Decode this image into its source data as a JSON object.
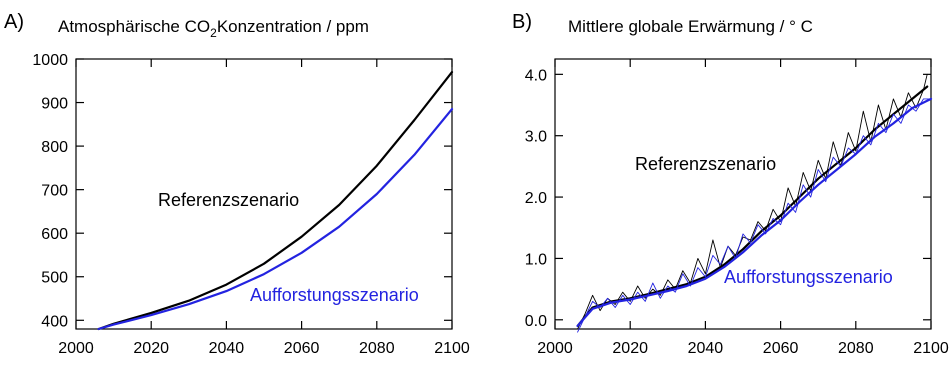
{
  "chart_data": [
    {
      "panel_label": "A)",
      "type": "line",
      "title_parts": {
        "pre": "Atmosphärische CO",
        "sub": "2",
        "post": "Konzentration / ppm"
      },
      "xlabel": "",
      "ylabel": "",
      "xlim": [
        2000,
        2100
      ],
      "ylim": [
        380,
        1000
      ],
      "x_ticks": [
        2000,
        2020,
        2040,
        2060,
        2080,
        2100
      ],
      "y_ticks": [
        400,
        500,
        600,
        700,
        800,
        900,
        1000
      ],
      "grid": false,
      "series": [
        {
          "color": "#000000",
          "x": [
            2006,
            2010,
            2020,
            2030,
            2040,
            2050,
            2060,
            2070,
            2080,
            2090,
            2100
          ],
          "y": [
            380,
            392,
            417,
            445,
            482,
            530,
            592,
            665,
            755,
            860,
            970
          ]
        },
        {
          "color": "#2323e0",
          "x": [
            2006,
            2010,
            2020,
            2030,
            2040,
            2050,
            2060,
            2070,
            2080,
            2090,
            2100
          ],
          "y": [
            380,
            390,
            412,
            437,
            467,
            506,
            555,
            615,
            690,
            780,
            885
          ]
        }
      ],
      "annotations": [
        {
          "text": "Referenzszenario",
          "color": "#000000"
        },
        {
          "text": "Aufforstungsszenario",
          "color": "#2323e0"
        }
      ]
    },
    {
      "panel_label": "B)",
      "type": "line",
      "title": "Mittlere globale Erwärmung / ° C",
      "xlabel": "",
      "ylabel": "",
      "xlim": [
        2000,
        2100
      ],
      "ylim": [
        -0.15,
        4.25
      ],
      "x_ticks": [
        2000,
        2020,
        2040,
        2060,
        2080,
        2100
      ],
      "y_ticks": [
        0.0,
        1.0,
        2.0,
        3.0,
        4.0
      ],
      "y_tick_labels": [
        "0.0",
        "1.0",
        "2.0",
        "3.0",
        "4.0"
      ],
      "grid": false,
      "series": [
        {
          "color": "#000000",
          "style": "smoothed",
          "x": [
            2006,
            2010,
            2015,
            2020,
            2025,
            2030,
            2035,
            2040,
            2045,
            2050,
            2055,
            2060,
            2065,
            2070,
            2075,
            2080,
            2085,
            2090,
            2095,
            2099
          ],
          "y": [
            -0.1,
            0.2,
            0.3,
            0.35,
            0.42,
            0.5,
            0.58,
            0.7,
            0.9,
            1.15,
            1.45,
            1.7,
            2.0,
            2.3,
            2.55,
            2.8,
            3.1,
            3.35,
            3.6,
            3.8
          ]
        },
        {
          "color": "#000000",
          "style": "annual",
          "x": [
            2006,
            2008,
            2010,
            2012,
            2014,
            2016,
            2018,
            2020,
            2022,
            2024,
            2026,
            2028,
            2030,
            2032,
            2034,
            2036,
            2038,
            2040,
            2042,
            2044,
            2046,
            2048,
            2050,
            2052,
            2054,
            2056,
            2058,
            2060,
            2062,
            2064,
            2066,
            2068,
            2070,
            2072,
            2074,
            2076,
            2078,
            2080,
            2082,
            2084,
            2086,
            2088,
            2090,
            2092,
            2094,
            2096,
            2098,
            2099
          ],
          "y": [
            -0.15,
            0.1,
            0.4,
            0.15,
            0.35,
            0.25,
            0.45,
            0.3,
            0.55,
            0.35,
            0.5,
            0.4,
            0.65,
            0.5,
            0.8,
            0.6,
            1.0,
            0.75,
            1.3,
            0.85,
            1.2,
            1.05,
            1.35,
            1.3,
            1.6,
            1.45,
            1.8,
            1.6,
            2.15,
            1.85,
            2.4,
            2.1,
            2.6,
            2.3,
            2.9,
            2.5,
            3.05,
            2.75,
            3.4,
            2.9,
            3.5,
            3.1,
            3.6,
            3.3,
            3.7,
            3.45,
            3.75,
            4.0
          ]
        },
        {
          "color": "#2323e0",
          "style": "smoothed",
          "x": [
            2006,
            2010,
            2015,
            2020,
            2025,
            2030,
            2035,
            2040,
            2045,
            2050,
            2055,
            2060,
            2065,
            2070,
            2075,
            2080,
            2085,
            2090,
            2095,
            2100
          ],
          "y": [
            -0.1,
            0.18,
            0.28,
            0.33,
            0.4,
            0.47,
            0.55,
            0.67,
            0.86,
            1.1,
            1.38,
            1.62,
            1.92,
            2.2,
            2.45,
            2.7,
            2.98,
            3.2,
            3.45,
            3.6
          ]
        },
        {
          "color": "#2323e0",
          "style": "annual",
          "x": [
            2006,
            2008,
            2010,
            2012,
            2014,
            2016,
            2018,
            2020,
            2022,
            2024,
            2026,
            2028,
            2030,
            2032,
            2034,
            2036,
            2038,
            2040,
            2042,
            2044,
            2046,
            2048,
            2050,
            2052,
            2054,
            2056,
            2058,
            2060,
            2062,
            2064,
            2066,
            2068,
            2070,
            2072,
            2074,
            2076,
            2078,
            2080,
            2082,
            2084,
            2086,
            2088,
            2090,
            2092,
            2094,
            2096,
            2098,
            2100
          ],
          "y": [
            -0.2,
            0.05,
            0.3,
            0.2,
            0.35,
            0.2,
            0.4,
            0.25,
            0.45,
            0.3,
            0.6,
            0.35,
            0.55,
            0.45,
            0.75,
            0.55,
            0.85,
            0.7,
            1.05,
            0.9,
            1.2,
            1.0,
            1.4,
            1.25,
            1.55,
            1.4,
            1.65,
            1.55,
            1.9,
            1.75,
            2.2,
            2.0,
            2.45,
            2.25,
            2.65,
            2.5,
            2.8,
            2.7,
            3.0,
            2.85,
            3.2,
            3.05,
            3.35,
            3.2,
            3.5,
            3.4,
            3.6,
            3.6
          ]
        }
      ],
      "annotations": [
        {
          "text": "Referenzszenario",
          "color": "#000000"
        },
        {
          "text": "Aufforstungsszenario",
          "color": "#2323e0"
        }
      ]
    }
  ]
}
